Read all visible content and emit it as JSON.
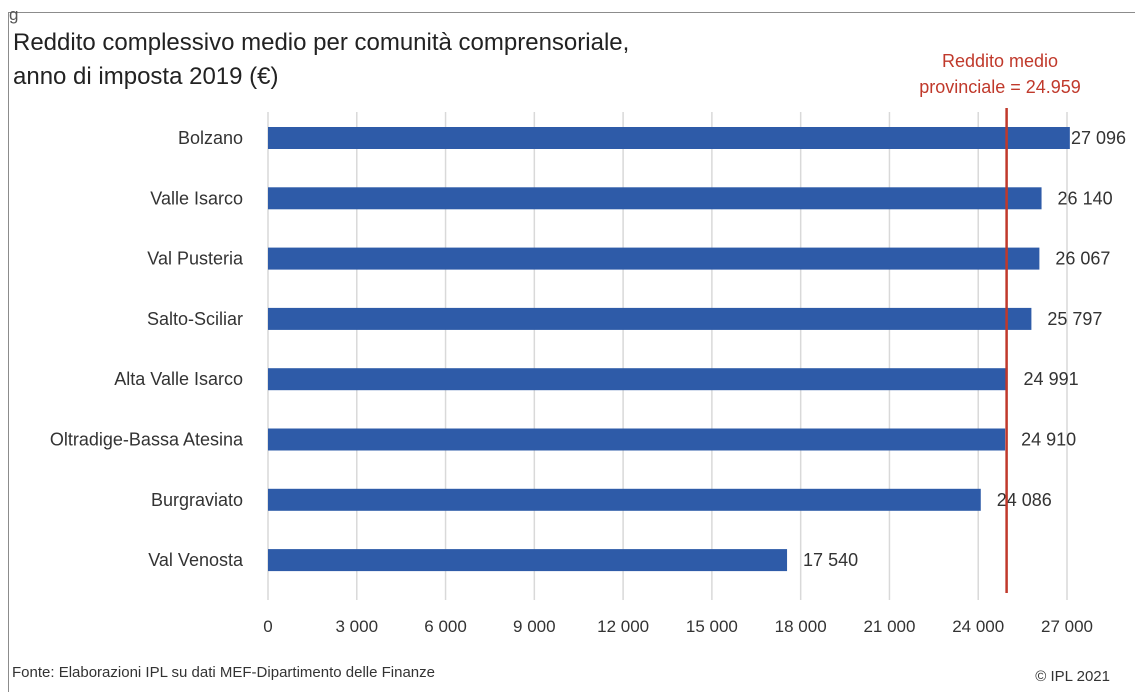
{
  "corner_mark": "g",
  "title_line1": "Reddito complessivo medio per comunità comprensoriale,",
  "title_line2": "anno di imposta 2019 (€)",
  "reference": {
    "label_line1": "Reddito medio",
    "label_line2": "provinciale = 24.959",
    "value": 24959,
    "color": "#c0392b"
  },
  "source": "Fonte: Elaborazioni IPL su dati MEF-Dipartimento delle Finanze",
  "copyright": "© IPL 2021",
  "chart_data": {
    "type": "bar",
    "orientation": "horizontal",
    "title": "Reddito complessivo medio per comunità comprensoriale, anno di imposta 2019 (€)",
    "categories": [
      "Bolzano",
      "Valle Isarco",
      "Val Pusteria",
      "Salto-Sciliar",
      "Alta Valle Isarco",
      "Oltradige-Bassa Atesina",
      "Burgraviato",
      "Val Venosta"
    ],
    "values": [
      27096,
      26140,
      26067,
      25797,
      24991,
      24910,
      24086,
      17540
    ],
    "value_labels": [
      "27 096",
      "26 140",
      "26 067",
      "25 797",
      "24 991",
      "24 910",
      "24 086",
      "17 540"
    ],
    "xlim": [
      0,
      27000
    ],
    "xticks": [
      0,
      3000,
      6000,
      9000,
      12000,
      15000,
      18000,
      21000,
      24000,
      27000
    ],
    "xtick_labels": [
      "0",
      "3 000",
      "6 000",
      "9 000",
      "12 000",
      "15 000",
      "18 000",
      "21 000",
      "24 000",
      "27 000"
    ],
    "grid": "vertical",
    "bar_color": "#2e5ba8",
    "grid_color": "#d9d9d9",
    "legend": "none"
  }
}
